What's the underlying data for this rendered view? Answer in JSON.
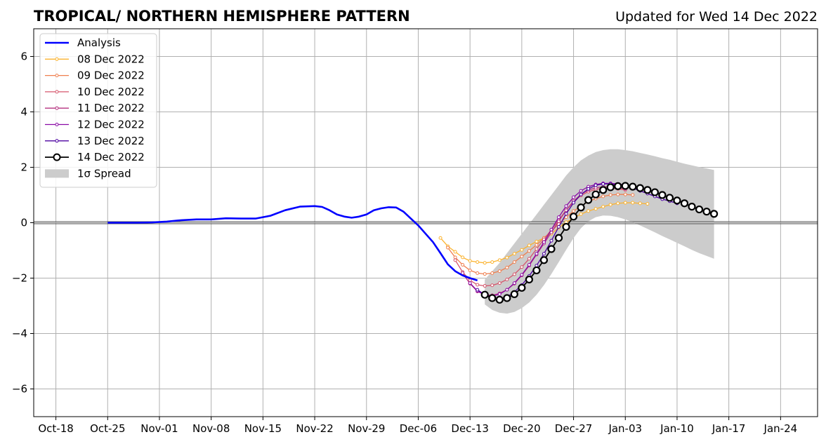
{
  "chart_data": {
    "type": "line",
    "title": "TROPICAL/ NORTHERN HEMISPHERE PATTERN",
    "subtitle": "Updated for Wed 14 Dec 2022",
    "xlabel": "",
    "ylabel": "",
    "x_start": "2022-10-15",
    "x_end": "2023-01-29",
    "x_ticks": [
      "Oct-18",
      "Oct-25",
      "Nov-01",
      "Nov-08",
      "Nov-15",
      "Nov-22",
      "Nov-29",
      "Dec-06",
      "Dec-13",
      "Dec-20",
      "Dec-27",
      "Jan-03",
      "Jan-10",
      "Jan-17",
      "Jan-24"
    ],
    "x_tick_dates": [
      "2022-10-18",
      "2022-10-25",
      "2022-11-01",
      "2022-11-08",
      "2022-11-15",
      "2022-11-22",
      "2022-11-29",
      "2022-12-06",
      "2022-12-13",
      "2022-12-20",
      "2022-12-27",
      "2023-01-03",
      "2023-01-10",
      "2023-01-17",
      "2023-01-24"
    ],
    "ylim": [
      -7,
      7
    ],
    "y_ticks": [
      6,
      4,
      2,
      0,
      -2,
      -4,
      -6
    ],
    "y_tick_labels": [
      "6",
      "4",
      "2",
      "0",
      "−2",
      "−4",
      "−6"
    ],
    "grid": true,
    "legend_position": "top-left",
    "legend": [
      {
        "label": "Analysis",
        "color": "#0000ff",
        "kind": "line"
      },
      {
        "label": "08 Dec 2022",
        "color": "#fbb32f",
        "kind": "dotline"
      },
      {
        "label": "09 Dec 2022",
        "color": "#ef7f4f",
        "kind": "dotline"
      },
      {
        "label": "10 Dec 2022",
        "color": "#d5566c",
        "kind": "dotline"
      },
      {
        "label": "11 Dec 2022",
        "color": "#b5317f",
        "kind": "dotline"
      },
      {
        "label": "12 Dec 2022",
        "color": "#8a0aa5",
        "kind": "dotline"
      },
      {
        "label": "13 Dec 2022",
        "color": "#4c02a1",
        "kind": "dotline"
      },
      {
        "label": "14 Dec 2022",
        "color": "#000000",
        "kind": "bigmarker"
      },
      {
        "label": "1σ Spread",
        "color": "#cccccc",
        "kind": "band"
      }
    ],
    "analysis": {
      "name": "Analysis",
      "color": "#0000ff",
      "x": [
        "2022-10-25",
        "2022-10-27",
        "2022-10-29",
        "2022-10-31",
        "2022-11-02",
        "2022-11-04",
        "2022-11-06",
        "2022-11-08",
        "2022-11-10",
        "2022-11-12",
        "2022-11-14",
        "2022-11-16",
        "2022-11-18",
        "2022-11-20",
        "2022-11-22",
        "2022-11-23",
        "2022-11-24",
        "2022-11-25",
        "2022-11-26",
        "2022-11-27",
        "2022-11-28",
        "2022-11-29",
        "2022-11-30",
        "2022-12-01",
        "2022-12-02",
        "2022-12-03",
        "2022-12-04",
        "2022-12-05",
        "2022-12-06",
        "2022-12-07",
        "2022-12-08",
        "2022-12-09",
        "2022-12-10",
        "2022-12-11",
        "2022-12-12",
        "2022-12-13",
        "2022-12-14"
      ],
      "y": [
        0,
        0,
        0,
        0.01,
        0.04,
        0.09,
        0.12,
        0.12,
        0.16,
        0.15,
        0.15,
        0.25,
        0.45,
        0.58,
        0.6,
        0.57,
        0.45,
        0.3,
        0.22,
        0.18,
        0.22,
        0.3,
        0.45,
        0.52,
        0.56,
        0.55,
        0.4,
        0.15,
        -0.1,
        -0.4,
        -0.7,
        -1.1,
        -1.5,
        -1.75,
        -1.9,
        -2.0,
        -2.08
      ]
    },
    "forecasts": [
      {
        "name": "08 Dec 2022",
        "color": "#fbb32f",
        "start": "2022-12-09",
        "y": [
          -0.55,
          -0.85,
          -1.05,
          -1.25,
          -1.38,
          -1.42,
          -1.45,
          -1.42,
          -1.35,
          -1.26,
          -1.12,
          -0.98,
          -0.82,
          -0.68,
          -0.55,
          -0.4,
          -0.18,
          0.02,
          0.17,
          0.31,
          0.42,
          0.5,
          0.58,
          0.65,
          0.7,
          0.72,
          0.72,
          0.7,
          0.68
        ]
      },
      {
        "name": "09 Dec 2022",
        "color": "#ef7f4f",
        "start": "2022-12-10",
        "y": [
          -0.9,
          -1.25,
          -1.52,
          -1.72,
          -1.82,
          -1.85,
          -1.82,
          -1.75,
          -1.62,
          -1.42,
          -1.22,
          -1.02,
          -0.8,
          -0.55,
          -0.3,
          -0.05,
          0.2,
          0.42,
          0.6,
          0.76,
          0.87,
          0.95,
          1.0,
          1.02,
          1.02,
          1.0
        ]
      },
      {
        "name": "10 Dec 2022",
        "color": "#d5566c",
        "start": "2022-12-11",
        "y": [
          -1.35,
          -1.78,
          -2.08,
          -2.24,
          -2.28,
          -2.26,
          -2.18,
          -2.05,
          -1.86,
          -1.6,
          -1.3,
          -0.95,
          -0.6,
          -0.25,
          0.1,
          0.45,
          0.75,
          0.98,
          1.12,
          1.2,
          1.24,
          1.24,
          1.22,
          1.18
        ]
      },
      {
        "name": "11 Dec 2022",
        "color": "#b5317f",
        "start": "2022-12-12",
        "y": [
          -1.82,
          -2.2,
          -2.48,
          -2.6,
          -2.62,
          -2.55,
          -2.42,
          -2.2,
          -1.9,
          -1.55,
          -1.15,
          -0.75,
          -0.35,
          0.05,
          0.45,
          0.78,
          1.02,
          1.18,
          1.26,
          1.3,
          1.28,
          1.26,
          1.22
        ]
      },
      {
        "name": "12 Dec 2022",
        "color": "#8a0aa5",
        "start": "2022-12-13",
        "y": [
          -2.18,
          -2.46,
          -2.62,
          -2.65,
          -2.58,
          -2.42,
          -2.18,
          -1.88,
          -1.52,
          -1.12,
          -0.7,
          -0.25,
          0.2,
          0.6,
          0.92,
          1.15,
          1.3,
          1.38,
          1.42,
          1.42,
          1.4,
          1.36,
          1.32,
          1.25,
          1.18,
          1.1,
          1.0
        ]
      },
      {
        "name": "13 Dec 2022",
        "color": "#4c02a1",
        "start": "2022-12-14",
        "y": [
          -2.42,
          -2.6,
          -2.72,
          -2.75,
          -2.68,
          -2.5,
          -2.25,
          -1.92,
          -1.55,
          -1.12,
          -0.65,
          -0.15,
          0.32,
          0.72,
          1.02,
          1.22,
          1.35,
          1.4,
          1.4,
          1.36,
          1.32,
          1.25,
          1.15,
          1.05,
          0.95,
          0.85,
          0.78,
          0.7
        ]
      }
    ],
    "latest": {
      "name": "14 Dec 2022",
      "color": "#000000",
      "start": "2022-12-15",
      "y": [
        -2.6,
        -2.72,
        -2.78,
        -2.72,
        -2.58,
        -2.35,
        -2.05,
        -1.72,
        -1.35,
        -0.95,
        -0.55,
        -0.15,
        0.22,
        0.55,
        0.82,
        1.02,
        1.18,
        1.28,
        1.32,
        1.33,
        1.3,
        1.25,
        1.18,
        1.1,
        1.0,
        0.9,
        0.8,
        0.7,
        0.58,
        0.48,
        0.4,
        0.32
      ]
    },
    "spread": {
      "start": "2022-12-15",
      "upper": [
        -2.05,
        -1.75,
        -1.45,
        -1.1,
        -0.75,
        -0.4,
        -0.05,
        0.3,
        0.65,
        1.0,
        1.35,
        1.7,
        2.0,
        2.25,
        2.42,
        2.55,
        2.62,
        2.65,
        2.65,
        2.62,
        2.58,
        2.52,
        2.46,
        2.4,
        2.33,
        2.27,
        2.2,
        2.13,
        2.07,
        2.01,
        1.96,
        1.9
      ],
      "lower": [
        -2.95,
        -3.15,
        -3.25,
        -3.28,
        -3.22,
        -3.08,
        -2.88,
        -2.6,
        -2.25,
        -1.85,
        -1.42,
        -0.98,
        -0.55,
        -0.2,
        0.05,
        0.2,
        0.26,
        0.25,
        0.2,
        0.12,
        0.02,
        -0.1,
        -0.22,
        -0.35,
        -0.48,
        -0.6,
        -0.73,
        -0.85,
        -0.98,
        -1.1,
        -1.2,
        -1.3
      ]
    }
  }
}
